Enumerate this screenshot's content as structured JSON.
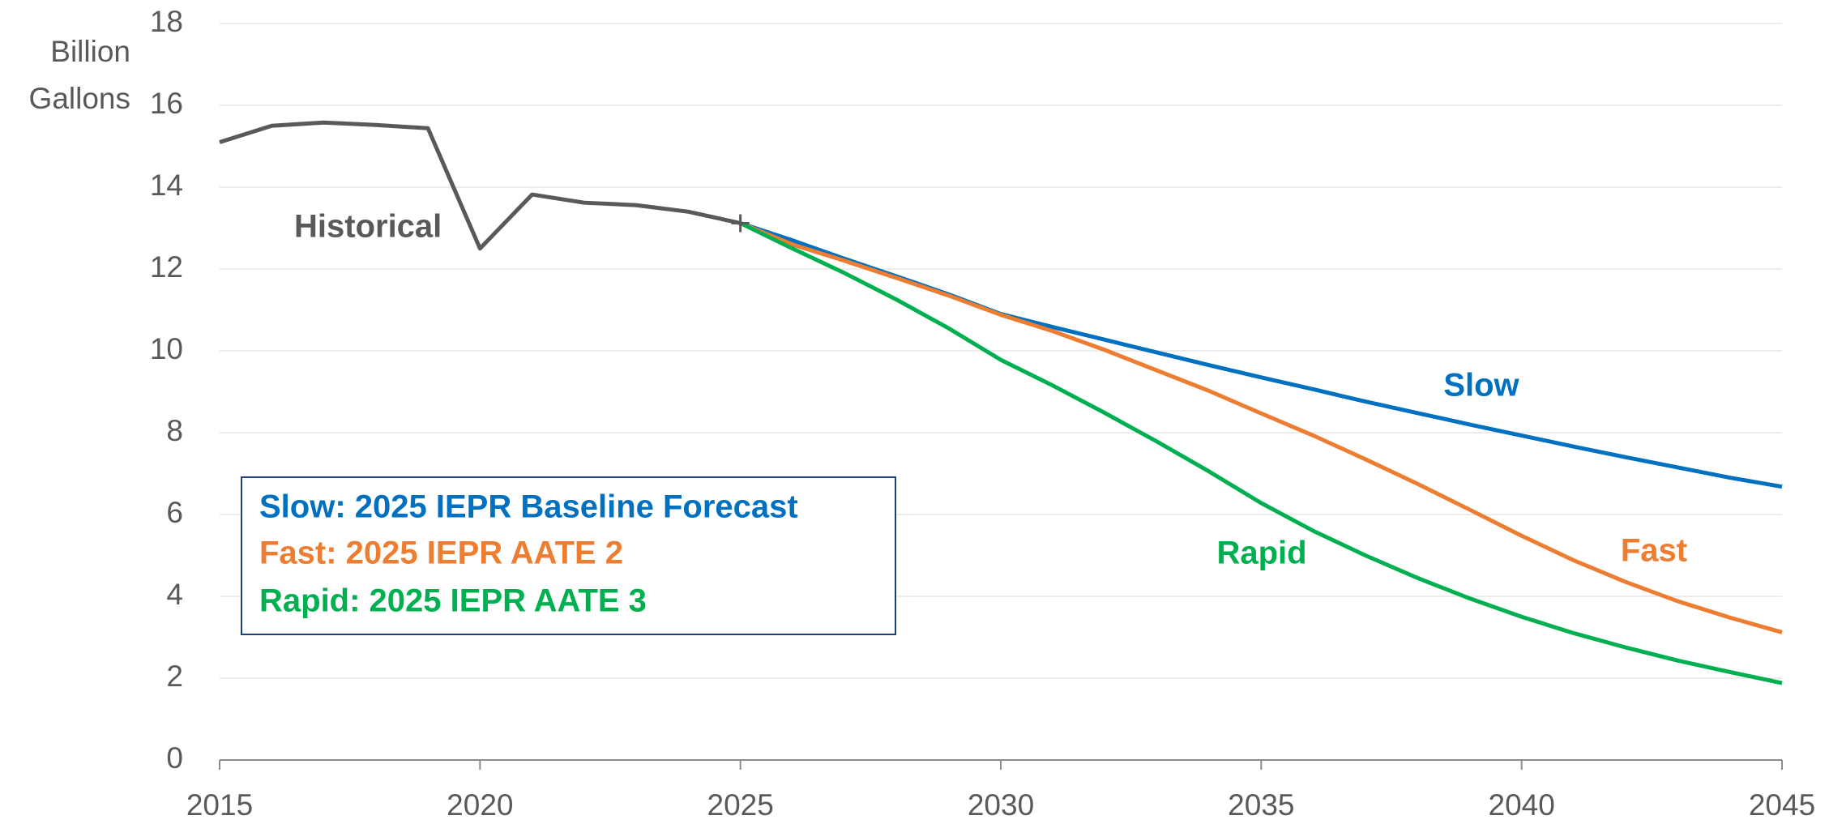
{
  "chart_data": {
    "type": "line",
    "y_label": [
      "Billion",
      "Gallons"
    ],
    "x": [
      2015,
      2016,
      2017,
      2018,
      2019,
      2020,
      2021,
      2022,
      2023,
      2024,
      2025,
      2026,
      2027,
      2028,
      2029,
      2030,
      2031,
      2032,
      2033,
      2034,
      2035,
      2036,
      2037,
      2038,
      2039,
      2040,
      2041,
      2042,
      2043,
      2044,
      2045
    ],
    "series": [
      {
        "name": "Historical",
        "color": "#595959",
        "values": [
          15.1,
          15.5,
          15.58,
          15.52,
          15.44,
          12.5,
          13.82,
          13.62,
          13.56,
          13.4,
          13.12,
          null,
          null,
          null,
          null,
          null,
          null,
          null,
          null,
          null,
          null,
          null,
          null,
          null,
          null,
          null,
          null,
          null,
          null,
          null,
          null
        ]
      },
      {
        "name": "Slow: 2025 IEPR Baseline Forecast",
        "color": "#0070c0",
        "values": [
          null,
          null,
          null,
          null,
          null,
          null,
          null,
          null,
          null,
          null,
          13.12,
          12.7,
          12.25,
          11.82,
          11.38,
          10.9,
          10.58,
          10.27,
          9.96,
          9.65,
          9.35,
          9.06,
          8.76,
          8.48,
          8.2,
          7.93,
          7.66,
          7.4,
          7.15,
          6.9,
          6.68
        ]
      },
      {
        "name": "Fast: 2025 IEPR AATE 2",
        "color": "#ed7d31",
        "values": [
          null,
          null,
          null,
          null,
          null,
          null,
          null,
          null,
          null,
          null,
          13.12,
          12.6,
          12.2,
          11.78,
          11.35,
          10.88,
          10.48,
          10.02,
          9.52,
          9.02,
          8.47,
          7.93,
          7.35,
          6.75,
          6.12,
          5.48,
          4.88,
          4.35,
          3.88,
          3.48,
          3.12
        ]
      },
      {
        "name": "Rapid: 2025 IEPR AATE 3",
        "color": "#00b050",
        "values": [
          null,
          null,
          null,
          null,
          null,
          null,
          null,
          null,
          null,
          null,
          13.12,
          12.5,
          11.9,
          11.25,
          10.55,
          9.78,
          9.15,
          8.48,
          7.78,
          7.05,
          6.28,
          5.6,
          5.0,
          4.45,
          3.95,
          3.5,
          3.1,
          2.75,
          2.43,
          2.15,
          1.88
        ]
      }
    ],
    "annotations": [
      "Slow",
      "Fast",
      "Rapid"
    ],
    "xlim": [
      2015,
      2045
    ],
    "xticks": [
      2015,
      2020,
      2025,
      2030,
      2035,
      2040,
      2045
    ],
    "ylim": [
      0,
      18
    ],
    "yticks": [
      0,
      2,
      4,
      6,
      8,
      10,
      12,
      14,
      16,
      18
    ],
    "grid": true
  }
}
